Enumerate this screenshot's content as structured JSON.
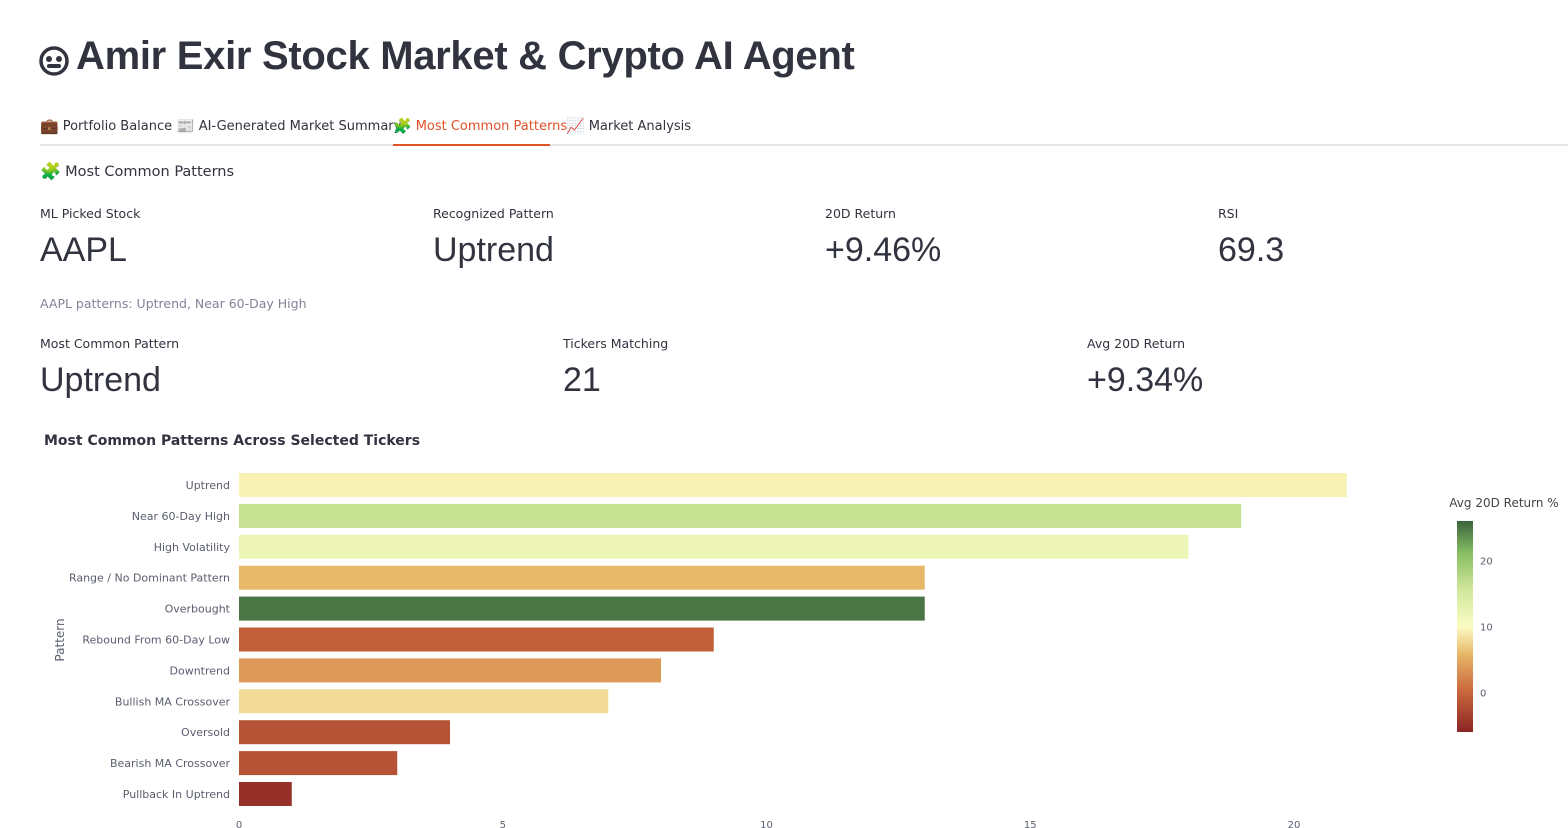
{
  "header": {
    "title": "Amir Exir Stock Market & Crypto AI Agent",
    "logo_icon": "robot-face-icon"
  },
  "tabs": [
    {
      "label": "Portfolio Balance",
      "icon": "💼",
      "active": false
    },
    {
      "label": "AI-Generated Market Summary",
      "icon": "📰",
      "active": false
    },
    {
      "label": "Most Common Patterns",
      "icon": "🧩",
      "active": true
    },
    {
      "label": "Market Analysis",
      "icon": "📈",
      "active": false
    }
  ],
  "section": {
    "icon": "🧩",
    "title": "Most Common Patterns"
  },
  "metrics_row1": [
    {
      "label": "ML Picked Stock",
      "value": "AAPL"
    },
    {
      "label": "Recognized Pattern",
      "value": "Uptrend"
    },
    {
      "label": "20D Return",
      "value": "+9.46%"
    },
    {
      "label": "RSI",
      "value": "69.3"
    }
  ],
  "caption": "AAPL patterns: Uptrend, Near 60-Day High",
  "metrics_row2": [
    {
      "label": "Most Common Pattern",
      "value": "Uptrend"
    },
    {
      "label": "Tickers Matching",
      "value": "21"
    },
    {
      "label": "Avg 20D Return",
      "value": "+9.34%"
    }
  ],
  "colors": {
    "accent": "#e0522a",
    "text": "#31333f"
  },
  "chart_data": {
    "type": "bar",
    "orientation": "horizontal",
    "title": "Most Common Patterns Across Selected Tickers",
    "ylabel": "Pattern",
    "xlabel": "",
    "categories": [
      "Uptrend",
      "Near 60-Day High",
      "High Volatility",
      "Range / No Dominant Pattern",
      "Overbought",
      "Rebound From 60-Day Low",
      "Downtrend",
      "Bullish MA Crossover",
      "Oversold",
      "Bearish MA Crossover",
      "Pullback In Uptrend"
    ],
    "values": [
      21,
      19,
      18,
      13,
      13,
      9,
      8,
      7,
      4,
      3,
      1
    ],
    "color_values": [
      9.3,
      16.5,
      12.0,
      5.0,
      25.0,
      -1.0,
      3.0,
      7.5,
      -2.0,
      -2.0,
      -5.0
    ],
    "xlim": [
      0,
      24
    ],
    "x_ticks": [
      "0",
      "5",
      "10",
      "15",
      "20"
    ],
    "colorbar": {
      "title": "Avg 20D Return %",
      "range": [
        -6,
        26
      ],
      "ticks": [
        "0",
        "10",
        "20"
      ]
    }
  }
}
